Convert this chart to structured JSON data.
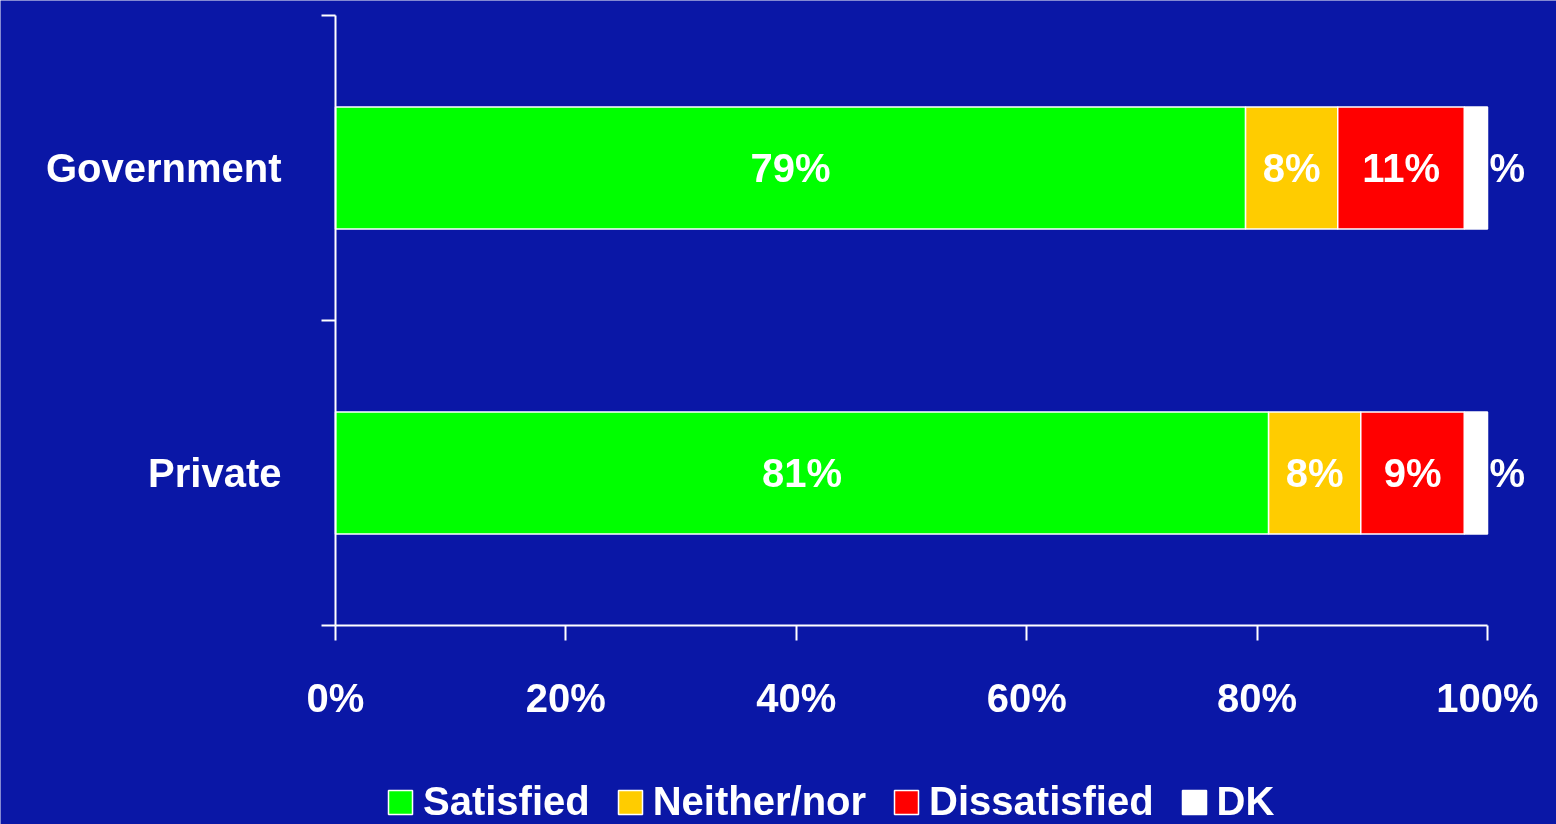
{
  "chart_data": {
    "type": "bar",
    "orientation": "horizontal",
    "stacked": true,
    "categories": [
      "Government",
      "Private"
    ],
    "series": [
      {
        "name": "Satisfied",
        "color": "#00ff00",
        "values": [
          79,
          81
        ],
        "value_labels": [
          "79%",
          "81%"
        ]
      },
      {
        "name": "Neither/nor",
        "color": "#ffcc00",
        "values": [
          8,
          8
        ],
        "value_labels": [
          "8%",
          "8%"
        ]
      },
      {
        "name": "Dissatisfied",
        "color": "#ff0000",
        "values": [
          11,
          9
        ],
        "value_labels": [
          "11%",
          "9%"
        ]
      },
      {
        "name": "DK",
        "color": "#ffffff",
        "values": [
          2,
          2
        ],
        "value_labels": [
          "%",
          "%"
        ]
      }
    ],
    "xlim": [
      0,
      100
    ],
    "xticks": [
      {
        "value": 0,
        "label": "0%"
      },
      {
        "value": 20,
        "label": "20%"
      },
      {
        "value": 40,
        "label": "40%"
      },
      {
        "value": 60,
        "label": "60%"
      },
      {
        "value": 80,
        "label": "80%"
      },
      {
        "value": 100,
        "label": "100%"
      }
    ],
    "grid": false,
    "legend": "bottom"
  }
}
